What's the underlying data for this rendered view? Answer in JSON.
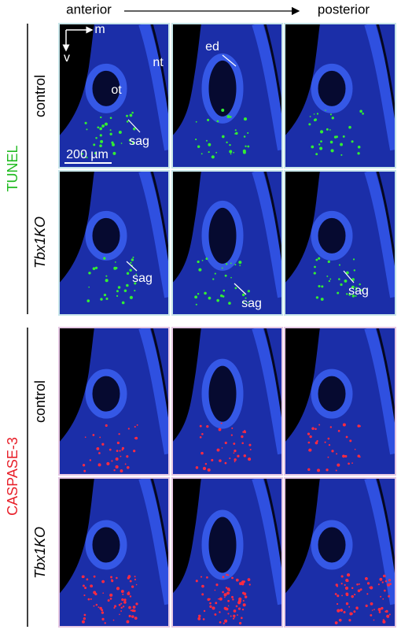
{
  "header": {
    "left": "anterior",
    "right": "posterior"
  },
  "groups": [
    {
      "label": "TUNEL",
      "rows": [
        {
          "label": "control"
        },
        {
          "label": "Tbx1KO"
        }
      ]
    },
    {
      "label": "CASPASE-3",
      "rows": [
        {
          "label": "control"
        },
        {
          "label": "Tbx1KO"
        }
      ]
    }
  ],
  "annotations": {
    "axis_m": "m",
    "axis_v": "v",
    "ot": "ot",
    "nt": "nt",
    "sag_1": "sag",
    "scale_bar": "200 µm",
    "ed": "ed",
    "sag_2": "sag",
    "sag_3": "sag",
    "sag_4": "sag"
  }
}
